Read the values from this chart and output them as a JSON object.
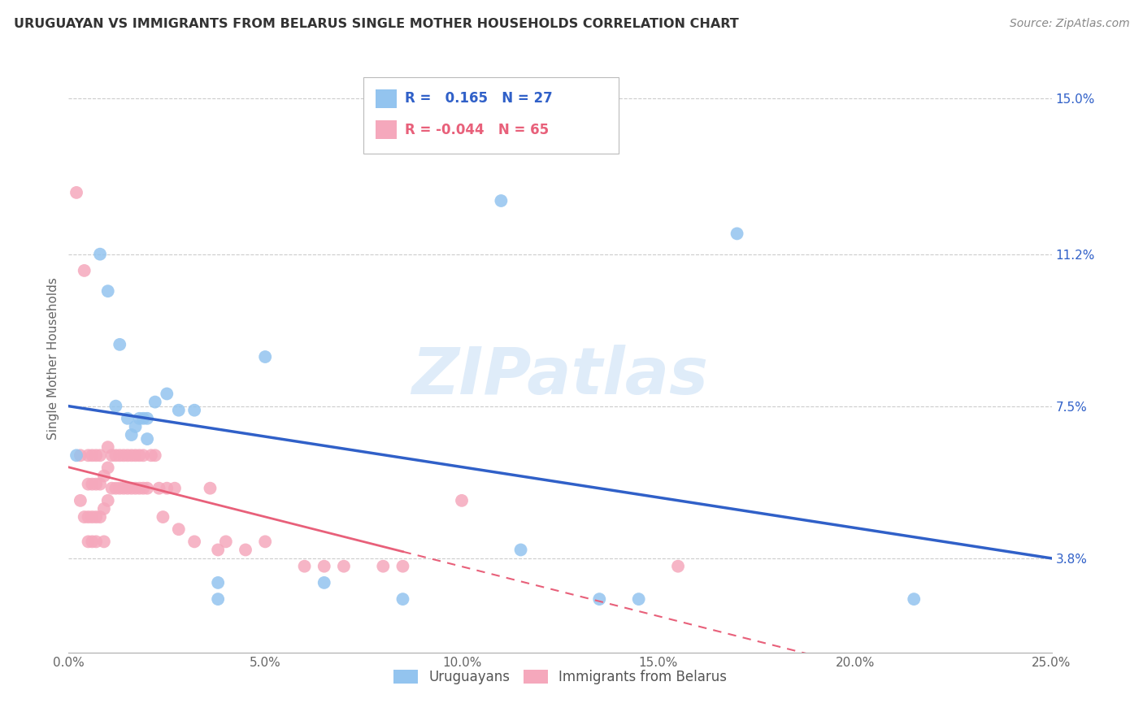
{
  "title": "URUGUAYAN VS IMMIGRANTS FROM BELARUS SINGLE MOTHER HOUSEHOLDS CORRELATION CHART",
  "source": "Source: ZipAtlas.com",
  "ylabel": "Single Mother Households",
  "ytick_vals": [
    0.038,
    0.075,
    0.112,
    0.15
  ],
  "ytick_labels": [
    "3.8%",
    "7.5%",
    "11.2%",
    "15.0%"
  ],
  "xmin": 0.0,
  "xmax": 0.25,
  "ymin": 0.015,
  "ymax": 0.158,
  "blue_color": "#93c4ef",
  "pink_color": "#f5a8bc",
  "blue_line_color": "#3060c8",
  "pink_line_color": "#e8607a",
  "blue_label": "Uruguayans",
  "pink_label": "Immigrants from Belarus",
  "legend_r_blue": "0.165",
  "legend_n_blue": "27",
  "legend_r_pink": "-0.044",
  "legend_n_pink": "65",
  "watermark": "ZIPatlas",
  "blue_x": [
    0.002,
    0.008,
    0.01,
    0.012,
    0.013,
    0.015,
    0.016,
    0.017,
    0.018,
    0.019,
    0.02,
    0.02,
    0.022,
    0.025,
    0.028,
    0.032,
    0.038,
    0.038,
    0.05,
    0.065,
    0.085,
    0.11,
    0.115,
    0.135,
    0.145,
    0.17,
    0.215
  ],
  "blue_y": [
    0.063,
    0.112,
    0.103,
    0.075,
    0.09,
    0.072,
    0.068,
    0.07,
    0.072,
    0.072,
    0.072,
    0.067,
    0.076,
    0.078,
    0.074,
    0.074,
    0.032,
    0.028,
    0.087,
    0.032,
    0.028,
    0.125,
    0.04,
    0.028,
    0.028,
    0.117,
    0.028
  ],
  "pink_x": [
    0.002,
    0.003,
    0.003,
    0.004,
    0.004,
    0.005,
    0.005,
    0.005,
    0.005,
    0.006,
    0.006,
    0.006,
    0.006,
    0.007,
    0.007,
    0.007,
    0.007,
    0.008,
    0.008,
    0.008,
    0.009,
    0.009,
    0.009,
    0.01,
    0.01,
    0.01,
    0.011,
    0.011,
    0.012,
    0.012,
    0.013,
    0.013,
    0.014,
    0.014,
    0.015,
    0.015,
    0.016,
    0.016,
    0.017,
    0.017,
    0.018,
    0.018,
    0.019,
    0.019,
    0.02,
    0.021,
    0.022,
    0.023,
    0.024,
    0.025,
    0.027,
    0.028,
    0.032,
    0.036,
    0.038,
    0.04,
    0.045,
    0.05,
    0.06,
    0.065,
    0.07,
    0.08,
    0.085,
    0.1,
    0.155
  ],
  "pink_y": [
    0.127,
    0.063,
    0.052,
    0.108,
    0.048,
    0.063,
    0.056,
    0.048,
    0.042,
    0.063,
    0.056,
    0.048,
    0.042,
    0.063,
    0.056,
    0.048,
    0.042,
    0.063,
    0.056,
    0.048,
    0.058,
    0.05,
    0.042,
    0.065,
    0.06,
    0.052,
    0.063,
    0.055,
    0.063,
    0.055,
    0.063,
    0.055,
    0.063,
    0.055,
    0.063,
    0.055,
    0.063,
    0.055,
    0.063,
    0.055,
    0.063,
    0.055,
    0.063,
    0.055,
    0.055,
    0.063,
    0.063,
    0.055,
    0.048,
    0.055,
    0.055,
    0.045,
    0.042,
    0.055,
    0.04,
    0.042,
    0.04,
    0.042,
    0.036,
    0.036,
    0.036,
    0.036,
    0.036,
    0.052,
    0.036
  ]
}
